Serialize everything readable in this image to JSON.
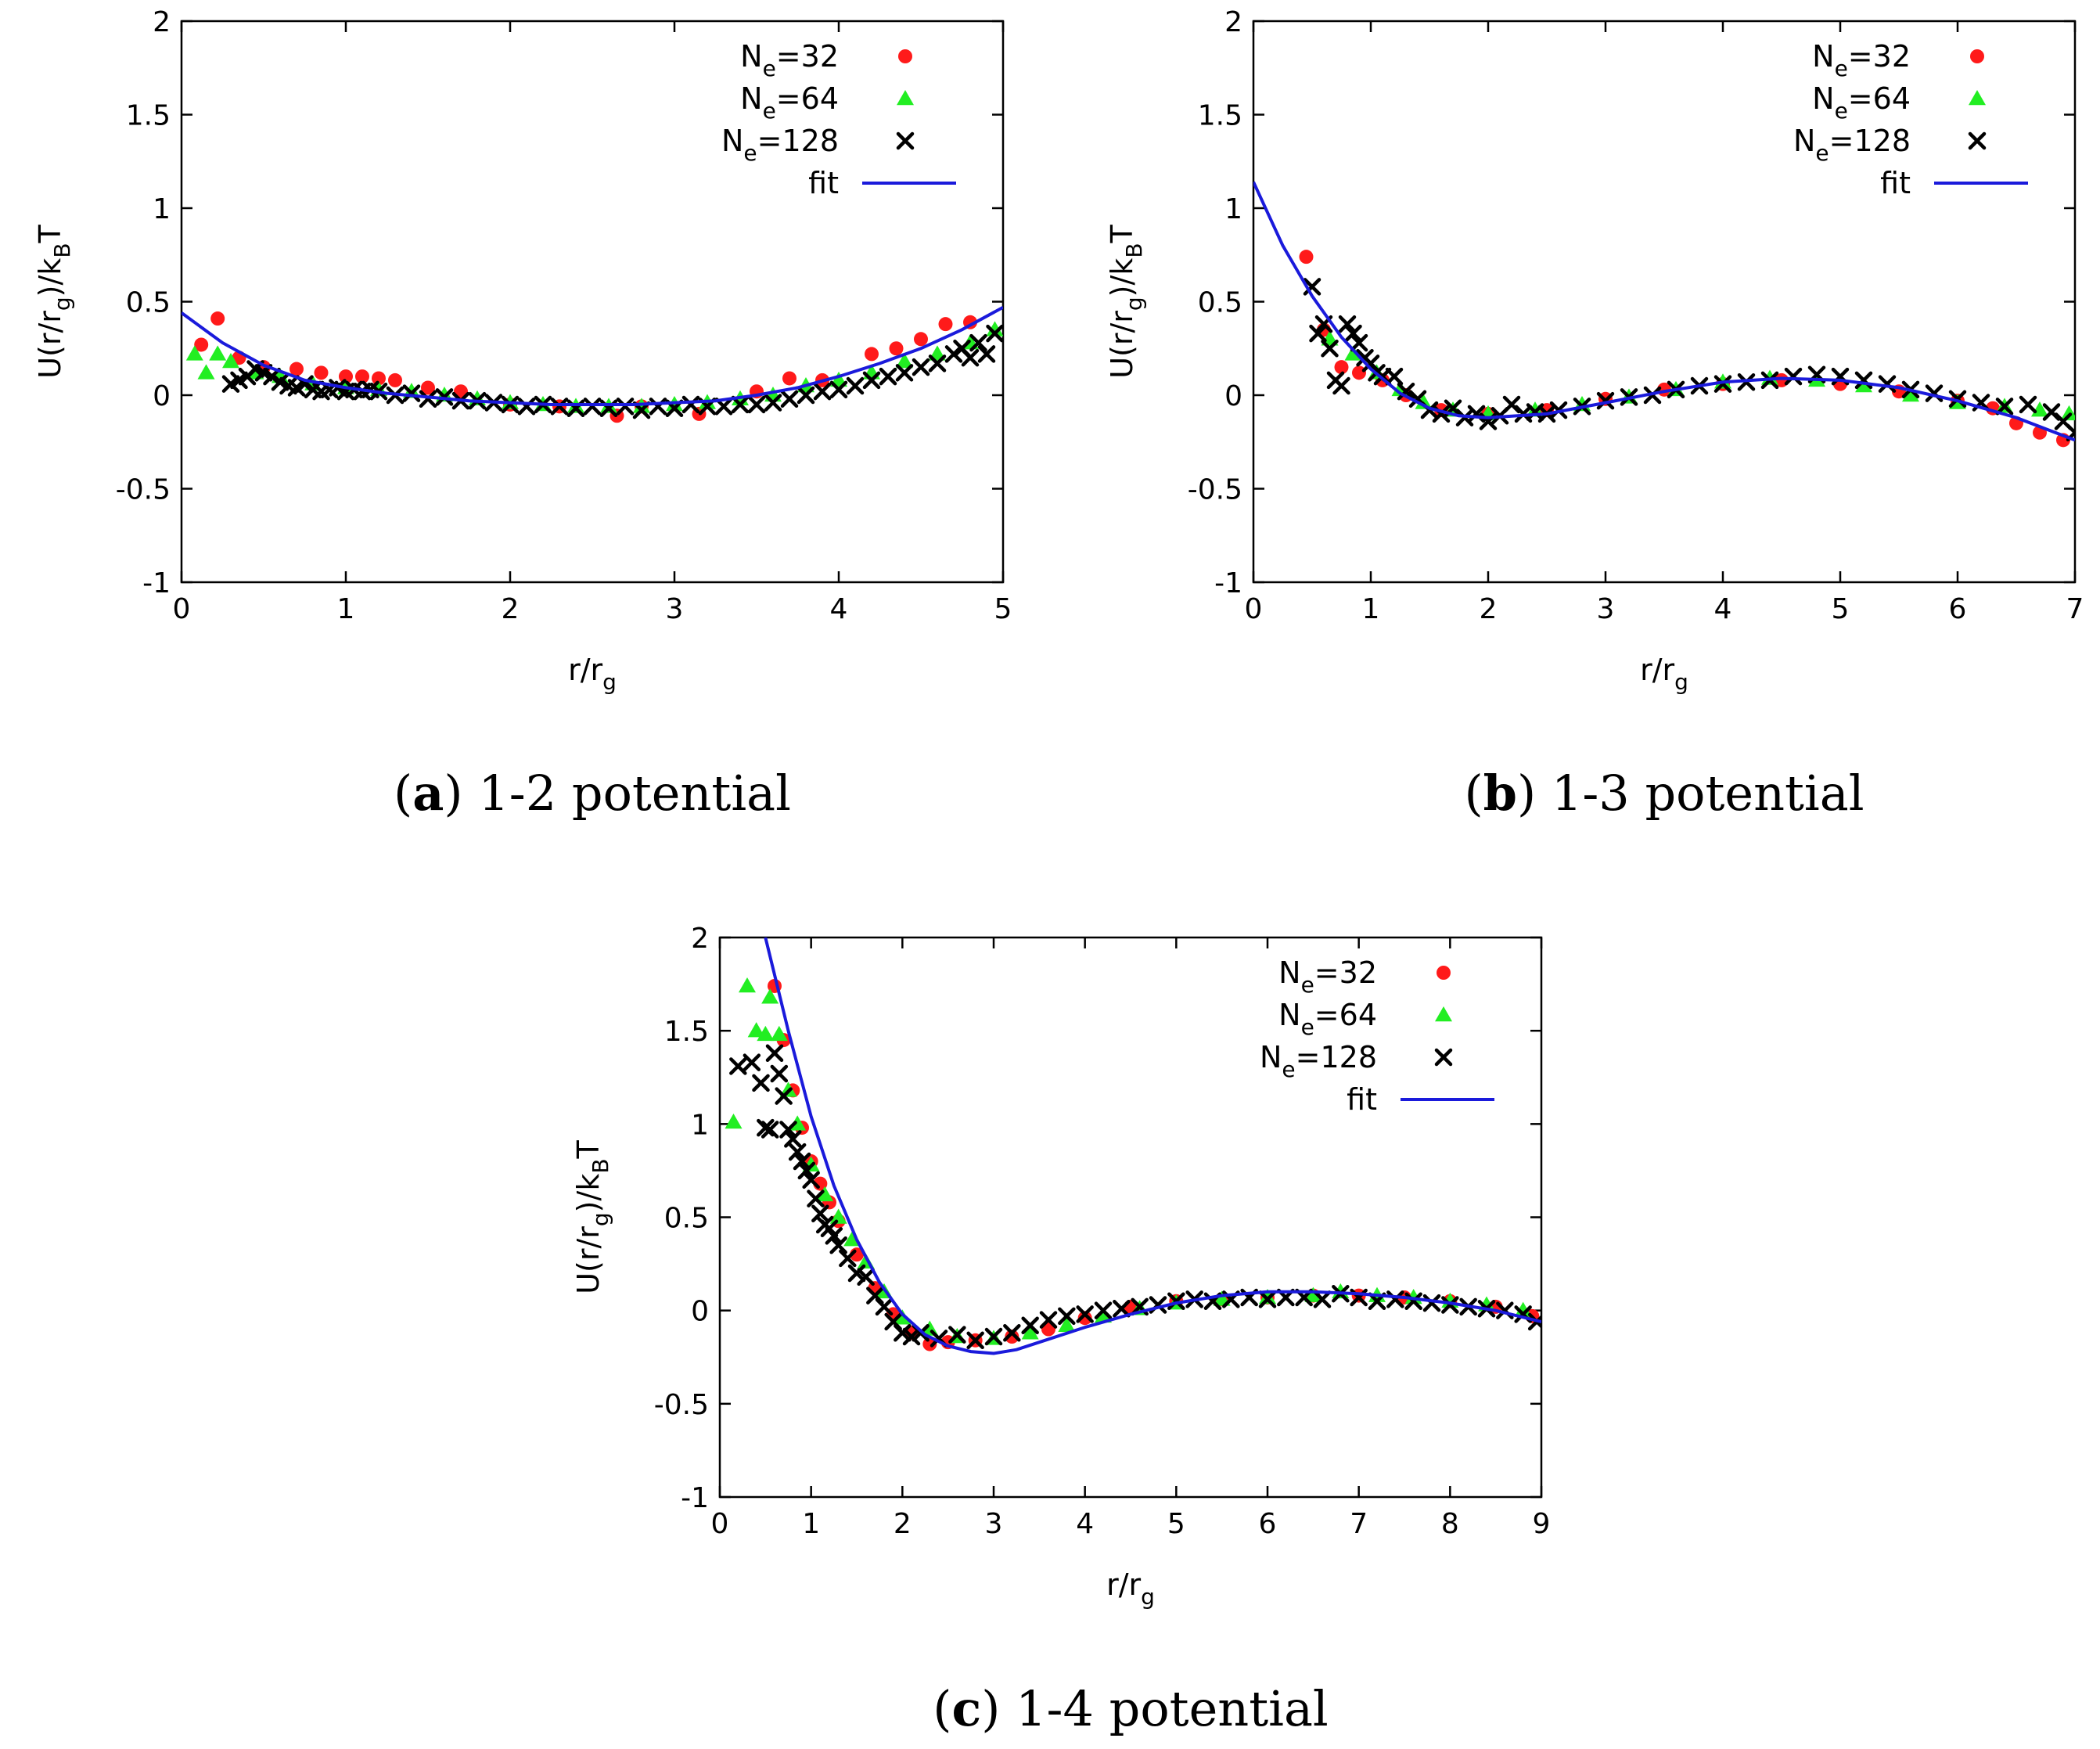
{
  "chart_data": [
    {
      "type": "scatter",
      "caption_label": "a",
      "caption_text": "1-2 potential",
      "xlabel": "r/r",
      "xlabel_sub": "g",
      "ylabel": "U(r/r",
      "ylabel_sub": "g",
      "ylabel_rest": ")/k",
      "ylabel_sub2": "B",
      "ylabel_end": "T",
      "xlim": [
        0,
        5
      ],
      "ylim": [
        -1,
        2
      ],
      "xticks": [
        "0",
        "1",
        "2",
        "3",
        "4",
        "5"
      ],
      "yticks": [
        "-1",
        "-0.5",
        "0",
        "0.5",
        "1",
        "1.5",
        "2"
      ],
      "legend_position": "top-right",
      "series": [
        {
          "name": "N",
          "name_sub": "e",
          "name_rest": "=32",
          "marker": "circle",
          "color": "#ff1a1a",
          "x": [
            0.12,
            0.22,
            0.35,
            0.5,
            0.7,
            0.85,
            1.0,
            1.1,
            1.2,
            1.3,
            1.5,
            1.7,
            2.0,
            2.3,
            2.65,
            2.8,
            3.15,
            3.5,
            3.7,
            3.9,
            4.2,
            4.35,
            4.5,
            4.65,
            4.8
          ],
          "y": [
            0.27,
            0.41,
            0.2,
            0.15,
            0.14,
            0.12,
            0.1,
            0.1,
            0.09,
            0.08,
            0.04,
            0.02,
            -0.05,
            -0.06,
            -0.11,
            -0.06,
            -0.1,
            0.02,
            0.09,
            0.08,
            0.22,
            0.25,
            0.3,
            0.38,
            0.39
          ]
        },
        {
          "name": "N",
          "name_sub": "e",
          "name_rest": "=64",
          "marker": "triangle",
          "color": "#22ee22",
          "x": [
            0.08,
            0.15,
            0.22,
            0.3,
            0.45,
            0.6,
            0.8,
            1.0,
            1.2,
            1.4,
            1.6,
            1.8,
            2.0,
            2.2,
            2.4,
            2.6,
            2.8,
            3.0,
            3.2,
            3.4,
            3.6,
            3.8,
            4.0,
            4.2,
            4.4,
            4.6,
            4.8,
            4.95
          ],
          "y": [
            0.22,
            0.12,
            0.22,
            0.18,
            0.12,
            0.1,
            0.06,
            0.04,
            0.03,
            0.02,
            0.0,
            -0.02,
            -0.04,
            -0.05,
            -0.06,
            -0.06,
            -0.06,
            -0.05,
            -0.04,
            -0.02,
            0.0,
            0.05,
            0.08,
            0.12,
            0.18,
            0.22,
            0.28,
            0.35
          ]
        },
        {
          "name": "N",
          "name_sub": "e",
          "name_rest": "=128",
          "marker": "cross",
          "color": "#000000",
          "x": [
            0.3,
            0.35,
            0.4,
            0.45,
            0.5,
            0.55,
            0.6,
            0.65,
            0.7,
            0.75,
            0.8,
            0.85,
            0.9,
            0.95,
            1.0,
            1.05,
            1.1,
            1.15,
            1.2,
            1.3,
            1.4,
            1.5,
            1.6,
            1.7,
            1.8,
            1.9,
            2.0,
            2.1,
            2.2,
            2.3,
            2.4,
            2.5,
            2.6,
            2.7,
            2.8,
            2.9,
            3.0,
            3.1,
            3.2,
            3.3,
            3.4,
            3.5,
            3.6,
            3.7,
            3.8,
            3.9,
            4.0,
            4.1,
            4.2,
            4.3,
            4.4,
            4.5,
            4.6,
            4.7,
            4.75,
            4.8,
            4.85,
            4.9,
            4.95
          ],
          "y": [
            0.06,
            0.08,
            0.1,
            0.14,
            0.12,
            0.1,
            0.07,
            0.05,
            0.04,
            0.06,
            0.03,
            0.02,
            0.03,
            0.04,
            0.02,
            0.03,
            0.02,
            0.03,
            0.02,
            0.0,
            0.01,
            -0.02,
            -0.01,
            -0.03,
            -0.03,
            -0.04,
            -0.05,
            -0.06,
            -0.05,
            -0.06,
            -0.07,
            -0.06,
            -0.07,
            -0.06,
            -0.08,
            -0.06,
            -0.07,
            -0.05,
            -0.06,
            -0.06,
            -0.05,
            -0.05,
            -0.04,
            -0.02,
            0.0,
            0.02,
            0.03,
            0.05,
            0.08,
            0.1,
            0.12,
            0.15,
            0.17,
            0.22,
            0.25,
            0.2,
            0.28,
            0.22,
            0.33
          ]
        },
        {
          "name": "fit",
          "marker": "line",
          "color": "#1a1adb",
          "x": [
            0.0,
            0.25,
            0.5,
            0.75,
            1.0,
            1.25,
            1.5,
            1.75,
            2.0,
            2.25,
            2.5,
            2.75,
            3.0,
            3.25,
            3.5,
            3.75,
            4.0,
            4.25,
            4.5,
            4.75,
            5.0
          ],
          "y": [
            0.44,
            0.28,
            0.16,
            0.08,
            0.04,
            0.01,
            -0.01,
            -0.03,
            -0.04,
            -0.05,
            -0.05,
            -0.05,
            -0.04,
            -0.03,
            0.0,
            0.04,
            0.1,
            0.17,
            0.25,
            0.35,
            0.47
          ]
        }
      ]
    },
    {
      "type": "scatter",
      "caption_label": "b",
      "caption_text": "1-3 potential",
      "xlabel": "r/r",
      "xlabel_sub": "g",
      "ylabel": "U(r/r",
      "ylabel_sub": "g",
      "ylabel_rest": ")/k",
      "ylabel_sub2": "B",
      "ylabel_end": "T",
      "xlim": [
        0,
        7
      ],
      "ylim": [
        -1,
        2
      ],
      "xticks": [
        "0",
        "1",
        "2",
        "3",
        "4",
        "5",
        "6",
        "7"
      ],
      "yticks": [
        "-1",
        "-0.5",
        "0",
        "0.5",
        "1",
        "1.5",
        "2"
      ],
      "legend_position": "top-right",
      "series": [
        {
          "name": "N",
          "name_sub": "e",
          "name_rest": "=32",
          "marker": "circle",
          "color": "#ff1a1a",
          "x": [
            0.45,
            0.6,
            0.75,
            0.9,
            1.1,
            1.3,
            1.6,
            2.0,
            2.5,
            3.0,
            3.5,
            4.0,
            4.5,
            5.0,
            5.5,
            6.0,
            6.3,
            6.5,
            6.7,
            6.9
          ],
          "y": [
            0.74,
            0.35,
            0.15,
            0.12,
            0.08,
            0.0,
            -0.08,
            -0.1,
            -0.08,
            -0.02,
            0.03,
            0.06,
            0.08,
            0.06,
            0.02,
            -0.03,
            -0.07,
            -0.15,
            -0.2,
            -0.24
          ]
        },
        {
          "name": "N",
          "name_sub": "e",
          "name_rest": "=64",
          "marker": "triangle",
          "color": "#22ee22",
          "x": [
            0.65,
            0.85,
            1.05,
            1.25,
            1.45,
            1.7,
            2.0,
            2.4,
            2.8,
            3.2,
            3.6,
            4.0,
            4.4,
            4.8,
            5.2,
            5.6,
            6.0,
            6.4,
            6.7,
            6.95
          ],
          "y": [
            0.3,
            0.22,
            0.12,
            0.03,
            -0.04,
            -0.08,
            -0.1,
            -0.08,
            -0.05,
            -0.01,
            0.03,
            0.07,
            0.09,
            0.08,
            0.05,
            0.0,
            -0.04,
            -0.06,
            -0.08,
            -0.1
          ]
        },
        {
          "name": "N",
          "name_sub": "e",
          "name_rest": "=128",
          "marker": "cross",
          "color": "#000000",
          "x": [
            0.5,
            0.55,
            0.6,
            0.65,
            0.7,
            0.75,
            0.8,
            0.85,
            0.9,
            0.95,
            1.0,
            1.05,
            1.1,
            1.2,
            1.3,
            1.4,
            1.5,
            1.6,
            1.7,
            1.8,
            1.9,
            2.0,
            2.1,
            2.2,
            2.3,
            2.4,
            2.5,
            2.6,
            2.8,
            3.0,
            3.2,
            3.4,
            3.6,
            3.8,
            4.0,
            4.2,
            4.4,
            4.6,
            4.8,
            5.0,
            5.2,
            5.4,
            5.6,
            5.8,
            6.0,
            6.2,
            6.4,
            6.6,
            6.8,
            6.9,
            7.0
          ],
          "y": [
            0.58,
            0.33,
            0.38,
            0.25,
            0.08,
            0.05,
            0.38,
            0.33,
            0.28,
            0.2,
            0.17,
            0.12,
            0.1,
            0.1,
            0.02,
            -0.02,
            -0.08,
            -0.1,
            -0.07,
            -0.12,
            -0.1,
            -0.14,
            -0.11,
            -0.05,
            -0.1,
            -0.09,
            -0.1,
            -0.08,
            -0.06,
            -0.03,
            -0.01,
            0.0,
            0.03,
            0.05,
            0.06,
            0.07,
            0.08,
            0.1,
            0.11,
            0.1,
            0.08,
            0.06,
            0.03,
            0.01,
            -0.02,
            -0.04,
            -0.06,
            -0.05,
            -0.09,
            -0.14,
            -0.2
          ]
        },
        {
          "name": "fit",
          "marker": "line",
          "color": "#1a1adb",
          "x": [
            0.0,
            0.25,
            0.5,
            0.75,
            1.0,
            1.25,
            1.5,
            1.75,
            2.0,
            2.5,
            3.0,
            3.5,
            4.0,
            4.5,
            5.0,
            5.5,
            6.0,
            6.5,
            7.0
          ],
          "y": [
            1.14,
            0.8,
            0.53,
            0.31,
            0.14,
            0.01,
            -0.07,
            -0.11,
            -0.12,
            -0.1,
            -0.04,
            0.02,
            0.07,
            0.09,
            0.08,
            0.04,
            -0.03,
            -0.12,
            -0.24
          ]
        }
      ]
    },
    {
      "type": "scatter",
      "caption_label": "c",
      "caption_text": "1-4 potential",
      "xlabel": "r/r",
      "xlabel_sub": "g",
      "ylabel": "U(r/r",
      "ylabel_sub": "g",
      "ylabel_rest": ")/k",
      "ylabel_sub2": "B",
      "ylabel_end": "T",
      "xlim": [
        0,
        9
      ],
      "ylim": [
        -1,
        2
      ],
      "xticks": [
        "0",
        "1",
        "2",
        "3",
        "4",
        "5",
        "6",
        "7",
        "8",
        "9"
      ],
      "yticks": [
        "-1",
        "-0.5",
        "0",
        "0.5",
        "1",
        "1.5",
        "2"
      ],
      "legend_position": "top-right",
      "series": [
        {
          "name": "N",
          "name_sub": "e",
          "name_rest": "=32",
          "marker": "circle",
          "color": "#ff1a1a",
          "x": [
            0.6,
            0.7,
            0.8,
            0.9,
            1.0,
            1.1,
            1.2,
            1.3,
            1.5,
            1.7,
            1.9,
            2.1,
            2.3,
            2.5,
            2.8,
            3.2,
            3.6,
            4.0,
            4.5,
            5.0,
            5.5,
            6.0,
            6.5,
            7.0,
            7.5,
            8.0,
            8.5,
            8.9
          ],
          "y": [
            1.74,
            1.45,
            1.18,
            0.98,
            0.8,
            0.68,
            0.58,
            0.48,
            0.3,
            0.12,
            -0.02,
            -0.12,
            -0.18,
            -0.17,
            -0.16,
            -0.14,
            -0.1,
            -0.04,
            0.02,
            0.05,
            0.06,
            0.07,
            0.08,
            0.08,
            0.07,
            0.05,
            0.02,
            -0.03
          ]
        },
        {
          "name": "N",
          "name_sub": "e",
          "name_rest": "=64",
          "marker": "triangle",
          "color": "#22ee22",
          "x": [
            0.15,
            0.3,
            0.4,
            0.5,
            0.55,
            0.65,
            0.75,
            0.85,
            1.0,
            1.15,
            1.3,
            1.45,
            1.6,
            1.8,
            2.0,
            2.3,
            2.6,
            3.0,
            3.4,
            3.8,
            4.2,
            4.6,
            5.0,
            5.5,
            6.0,
            6.5,
            6.8,
            7.2,
            7.6,
            8.0,
            8.4,
            8.8
          ],
          "y": [
            1.01,
            1.74,
            1.5,
            1.48,
            1.68,
            1.48,
            1.18,
            1.0,
            0.78,
            0.62,
            0.5,
            0.38,
            0.26,
            0.1,
            -0.04,
            -0.1,
            -0.14,
            -0.15,
            -0.12,
            -0.08,
            -0.03,
            0.01,
            0.04,
            0.06,
            0.07,
            0.08,
            0.1,
            0.08,
            0.07,
            0.05,
            0.03,
            0.0
          ]
        },
        {
          "name": "N",
          "name_sub": "e",
          "name_rest": "=128",
          "marker": "cross",
          "color": "#000000",
          "x": [
            0.2,
            0.35,
            0.45,
            0.5,
            0.55,
            0.6,
            0.65,
            0.7,
            0.75,
            0.8,
            0.85,
            0.9,
            0.95,
            1.0,
            1.05,
            1.1,
            1.15,
            1.2,
            1.25,
            1.3,
            1.4,
            1.5,
            1.6,
            1.7,
            1.8,
            1.9,
            2.0,
            2.1,
            2.2,
            2.4,
            2.6,
            2.8,
            3.0,
            3.2,
            3.4,
            3.6,
            3.8,
            4.0,
            4.2,
            4.4,
            4.6,
            4.8,
            5.0,
            5.2,
            5.4,
            5.6,
            5.8,
            6.0,
            6.2,
            6.4,
            6.6,
            6.8,
            7.0,
            7.2,
            7.4,
            7.6,
            7.8,
            8.0,
            8.2,
            8.4,
            8.6,
            8.8,
            8.95
          ],
          "y": [
            1.31,
            1.33,
            1.22,
            0.98,
            0.97,
            1.38,
            1.27,
            1.15,
            0.97,
            0.92,
            0.85,
            0.8,
            0.75,
            0.7,
            0.6,
            0.52,
            0.46,
            0.44,
            0.4,
            0.35,
            0.28,
            0.2,
            0.18,
            0.08,
            0.02,
            -0.06,
            -0.12,
            -0.14,
            -0.12,
            -0.15,
            -0.13,
            -0.16,
            -0.14,
            -0.12,
            -0.08,
            -0.05,
            -0.03,
            -0.02,
            0.0,
            0.01,
            0.02,
            0.03,
            0.05,
            0.06,
            0.05,
            0.06,
            0.07,
            0.06,
            0.07,
            0.07,
            0.06,
            0.09,
            0.07,
            0.05,
            0.06,
            0.05,
            0.04,
            0.03,
            0.02,
            0.01,
            0.0,
            -0.02,
            -0.06
          ]
        },
        {
          "name": "fit",
          "marker": "line",
          "color": "#1a1adb",
          "x": [
            0.5,
            0.75,
            1.0,
            1.25,
            1.5,
            1.75,
            2.0,
            2.25,
            2.5,
            2.75,
            3.0,
            3.25,
            3.5,
            4.0,
            4.5,
            5.0,
            5.5,
            6.0,
            6.5,
            7.0,
            7.5,
            8.0,
            8.5,
            9.0
          ],
          "y": [
            2.0,
            1.5,
            1.04,
            0.67,
            0.38,
            0.15,
            -0.02,
            -0.13,
            -0.19,
            -0.22,
            -0.23,
            -0.21,
            -0.17,
            -0.09,
            -0.02,
            0.04,
            0.08,
            0.1,
            0.1,
            0.09,
            0.07,
            0.04,
            0.0,
            -0.06
          ]
        }
      ]
    }
  ]
}
